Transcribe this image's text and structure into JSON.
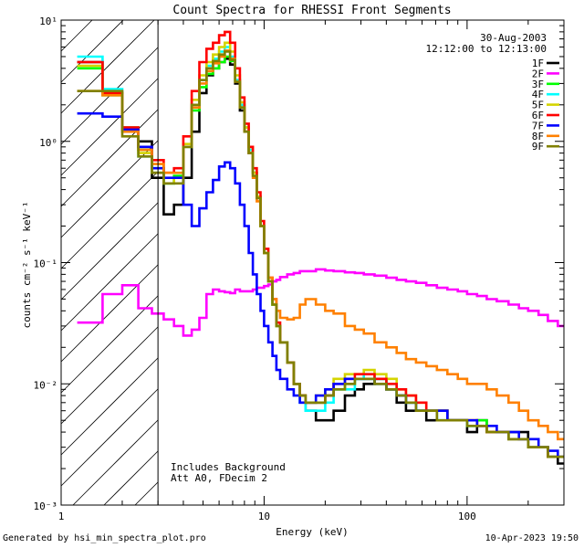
{
  "colors": {
    "background": "#ffffff",
    "axes": "#000000",
    "1F": "#000000",
    "2F": "#ff00ff",
    "3F": "#00ff00",
    "4F": "#00ffff",
    "5F": "#d4d400",
    "6F": "#ff0000",
    "7F": "#0000ff",
    "8F": "#ff8000",
    "9F": "#808000"
  },
  "footer": {
    "generator": "Generated by hsi_min_spectra_plot.pro",
    "timestamp": "10-Apr-2023 19:50"
  },
  "chart_data": {
    "type": "line",
    "title": "Count Spectra for RHESSI Front Segments",
    "xlabel": "Energy (keV)",
    "ylabel": "counts cm⁻² s⁻¹ keV⁻¹",
    "xscale": "log",
    "yscale": "log",
    "xlim": [
      1,
      300
    ],
    "ylim": [
      0.001,
      10
    ],
    "xticks": [
      {
        "value": 1,
        "label": "1"
      },
      {
        "value": 10,
        "label": "10"
      },
      {
        "value": 100,
        "label": "100"
      }
    ],
    "yticks": [
      {
        "exp": -3,
        "label": "10⁻³"
      },
      {
        "exp": -2,
        "label": "10⁻²"
      },
      {
        "exp": -1,
        "label": "10⁻¹"
      },
      {
        "exp": 0,
        "label": "10⁰"
      },
      {
        "exp": 1,
        "label": "10¹"
      }
    ],
    "date_label": "30-Aug-2003",
    "time_range_label": "12:12:00 to 12:13:00",
    "annotations": [
      "Includes Background",
      "Att A0, FDecim 2"
    ],
    "excluded_region": {
      "from": 1,
      "to": 3,
      "pattern": "hatched"
    },
    "energy_edges": [
      1.2,
      1.6,
      2.0,
      2.4,
      2.8,
      3.2,
      3.6,
      4.0,
      4.4,
      4.8,
      5.2,
      5.6,
      6.0,
      6.4,
      6.8,
      7.2,
      7.6,
      8.0,
      8.4,
      8.8,
      9.2,
      9.6,
      10,
      10.5,
      11,
      11.5,
      12,
      13,
      14,
      15,
      16,
      18,
      20,
      22,
      25,
      28,
      31,
      35,
      40,
      45,
      50,
      56,
      63,
      71,
      80,
      90,
      100,
      112,
      125,
      140,
      160,
      180,
      200,
      225,
      250,
      280,
      300
    ],
    "series": [
      {
        "name": "1F",
        "values": [
          4.5,
          2.5,
          1.3,
          1.0,
          0.5,
          0.25,
          0.3,
          0.5,
          1.2,
          2.5,
          3.5,
          4.0,
          4.5,
          4.8,
          4.3,
          3.0,
          1.8,
          1.2,
          0.8,
          0.55,
          0.35,
          0.2,
          0.12,
          0.07,
          0.045,
          0.03,
          0.022,
          0.015,
          0.01,
          0.008,
          0.006,
          0.005,
          0.005,
          0.006,
          0.008,
          0.009,
          0.01,
          0.011,
          0.009,
          0.007,
          0.006,
          0.006,
          0.005,
          0.006,
          0.005,
          0.005,
          0.004,
          0.005,
          0.004,
          0.004,
          0.004,
          0.004,
          0.003,
          0.003,
          0.0025,
          0.0022
        ]
      },
      {
        "name": "2F",
        "values": [
          0.032,
          0.055,
          0.065,
          0.042,
          0.038,
          0.034,
          0.03,
          0.025,
          0.028,
          0.035,
          0.055,
          0.06,
          0.058,
          0.057,
          0.056,
          0.06,
          0.058,
          0.058,
          0.058,
          0.06,
          0.062,
          0.062,
          0.064,
          0.066,
          0.07,
          0.072,
          0.076,
          0.08,
          0.082,
          0.085,
          0.085,
          0.088,
          0.086,
          0.085,
          0.083,
          0.082,
          0.08,
          0.078,
          0.075,
          0.072,
          0.07,
          0.068,
          0.065,
          0.062,
          0.06,
          0.058,
          0.055,
          0.053,
          0.05,
          0.048,
          0.045,
          0.042,
          0.04,
          0.037,
          0.033,
          0.03
        ]
      },
      {
        "name": "3F",
        "values": [
          4.0,
          2.4,
          1.25,
          0.85,
          0.6,
          0.45,
          0.52,
          0.9,
          1.8,
          2.8,
          3.6,
          4.0,
          4.5,
          5.0,
          4.6,
          3.2,
          2.0,
          1.3,
          0.85,
          0.55,
          0.35,
          0.2,
          0.12,
          0.07,
          0.045,
          0.03,
          0.022,
          0.015,
          0.01,
          0.008,
          0.007,
          0.007,
          0.008,
          0.009,
          0.01,
          0.011,
          0.011,
          0.01,
          0.009,
          0.008,
          0.007,
          0.006,
          0.006,
          0.006,
          0.005,
          0.005,
          0.0045,
          0.005,
          0.004,
          0.004,
          0.0035,
          0.0035,
          0.003,
          0.003,
          0.0025,
          0.0025
        ]
      },
      {
        "name": "4F",
        "values": [
          5.0,
          2.7,
          1.3,
          0.75,
          0.55,
          0.45,
          0.5,
          0.9,
          2.0,
          3.2,
          4.2,
          4.8,
          5.5,
          6.0,
          5.0,
          3.2,
          2.0,
          1.3,
          0.85,
          0.55,
          0.35,
          0.2,
          0.12,
          0.07,
          0.045,
          0.03,
          0.022,
          0.015,
          0.01,
          0.007,
          0.006,
          0.006,
          0.007,
          0.009,
          0.009,
          0.011,
          0.012,
          0.011,
          0.01,
          0.008,
          0.007,
          0.006,
          0.006,
          0.005,
          0.005,
          0.005,
          0.0045,
          0.0045,
          0.004,
          0.004,
          0.0035,
          0.0035,
          0.003,
          0.003,
          0.0025,
          0.0025
        ]
      },
      {
        "name": "5F",
        "values": [
          4.2,
          2.5,
          1.3,
          0.8,
          0.55,
          0.45,
          0.5,
          0.95,
          2.2,
          3.5,
          4.5,
          5.2,
          6.0,
          6.5,
          5.5,
          3.5,
          2.1,
          1.3,
          0.9,
          0.55,
          0.35,
          0.2,
          0.12,
          0.07,
          0.045,
          0.03,
          0.022,
          0.015,
          0.01,
          0.008,
          0.007,
          0.008,
          0.009,
          0.011,
          0.012,
          0.012,
          0.013,
          0.012,
          0.011,
          0.009,
          0.008,
          0.007,
          0.006,
          0.006,
          0.005,
          0.005,
          0.005,
          0.0045,
          0.004,
          0.004,
          0.0035,
          0.0035,
          0.003,
          0.003,
          0.0025,
          0.0025
        ]
      },
      {
        "name": "6F",
        "values": [
          4.5,
          2.5,
          1.3,
          0.9,
          0.7,
          0.55,
          0.6,
          1.1,
          2.6,
          4.5,
          5.8,
          6.5,
          7.5,
          8.0,
          6.5,
          4.0,
          2.3,
          1.4,
          0.9,
          0.6,
          0.38,
          0.22,
          0.13,
          0.075,
          0.05,
          0.032,
          0.022,
          0.015,
          0.01,
          0.008,
          0.007,
          0.007,
          0.008,
          0.01,
          0.011,
          0.012,
          0.012,
          0.011,
          0.01,
          0.009,
          0.008,
          0.007,
          0.006,
          0.006,
          0.005,
          0.005,
          0.005,
          0.0045,
          0.004,
          0.004,
          0.0035,
          0.0035,
          0.003,
          0.003,
          0.0025,
          0.0025
        ]
      },
      {
        "name": "7F",
        "values": [
          1.7,
          1.6,
          1.25,
          0.9,
          0.6,
          0.5,
          0.5,
          0.3,
          0.2,
          0.28,
          0.38,
          0.48,
          0.62,
          0.67,
          0.6,
          0.45,
          0.3,
          0.2,
          0.12,
          0.08,
          0.055,
          0.04,
          0.03,
          0.022,
          0.017,
          0.013,
          0.011,
          0.009,
          0.008,
          0.007,
          0.007,
          0.008,
          0.009,
          0.01,
          0.011,
          0.011,
          0.011,
          0.01,
          0.009,
          0.008,
          0.007,
          0.006,
          0.006,
          0.006,
          0.005,
          0.005,
          0.005,
          0.0045,
          0.0045,
          0.004,
          0.004,
          0.0035,
          0.0035,
          0.003,
          0.0028,
          0.0025
        ]
      },
      {
        "name": "8F",
        "values": [
          2.6,
          2.4,
          1.2,
          0.85,
          0.65,
          0.55,
          0.55,
          0.9,
          1.9,
          3.0,
          3.8,
          4.4,
          5.0,
          5.6,
          4.8,
          3.1,
          1.9,
          1.2,
          0.8,
          0.5,
          0.32,
          0.2,
          0.12,
          0.075,
          0.05,
          0.04,
          0.035,
          0.034,
          0.035,
          0.045,
          0.05,
          0.045,
          0.04,
          0.038,
          0.03,
          0.028,
          0.026,
          0.022,
          0.02,
          0.018,
          0.016,
          0.015,
          0.014,
          0.013,
          0.012,
          0.011,
          0.01,
          0.01,
          0.009,
          0.008,
          0.007,
          0.006,
          0.005,
          0.0045,
          0.004,
          0.0035
        ]
      },
      {
        "name": "9F",
        "values": [
          2.6,
          2.6,
          1.1,
          0.75,
          0.55,
          0.45,
          0.45,
          0.9,
          2.0,
          3.2,
          4.0,
          4.6,
          5.2,
          5.5,
          4.7,
          3.1,
          1.9,
          1.2,
          0.8,
          0.52,
          0.34,
          0.2,
          0.12,
          0.07,
          0.045,
          0.03,
          0.022,
          0.015,
          0.01,
          0.008,
          0.007,
          0.007,
          0.008,
          0.009,
          0.01,
          0.011,
          0.011,
          0.01,
          0.009,
          0.008,
          0.007,
          0.006,
          0.006,
          0.005,
          0.005,
          0.005,
          0.0045,
          0.0045,
          0.004,
          0.004,
          0.0035,
          0.0035,
          0.003,
          0.003,
          0.0025,
          0.0025
        ]
      }
    ]
  }
}
